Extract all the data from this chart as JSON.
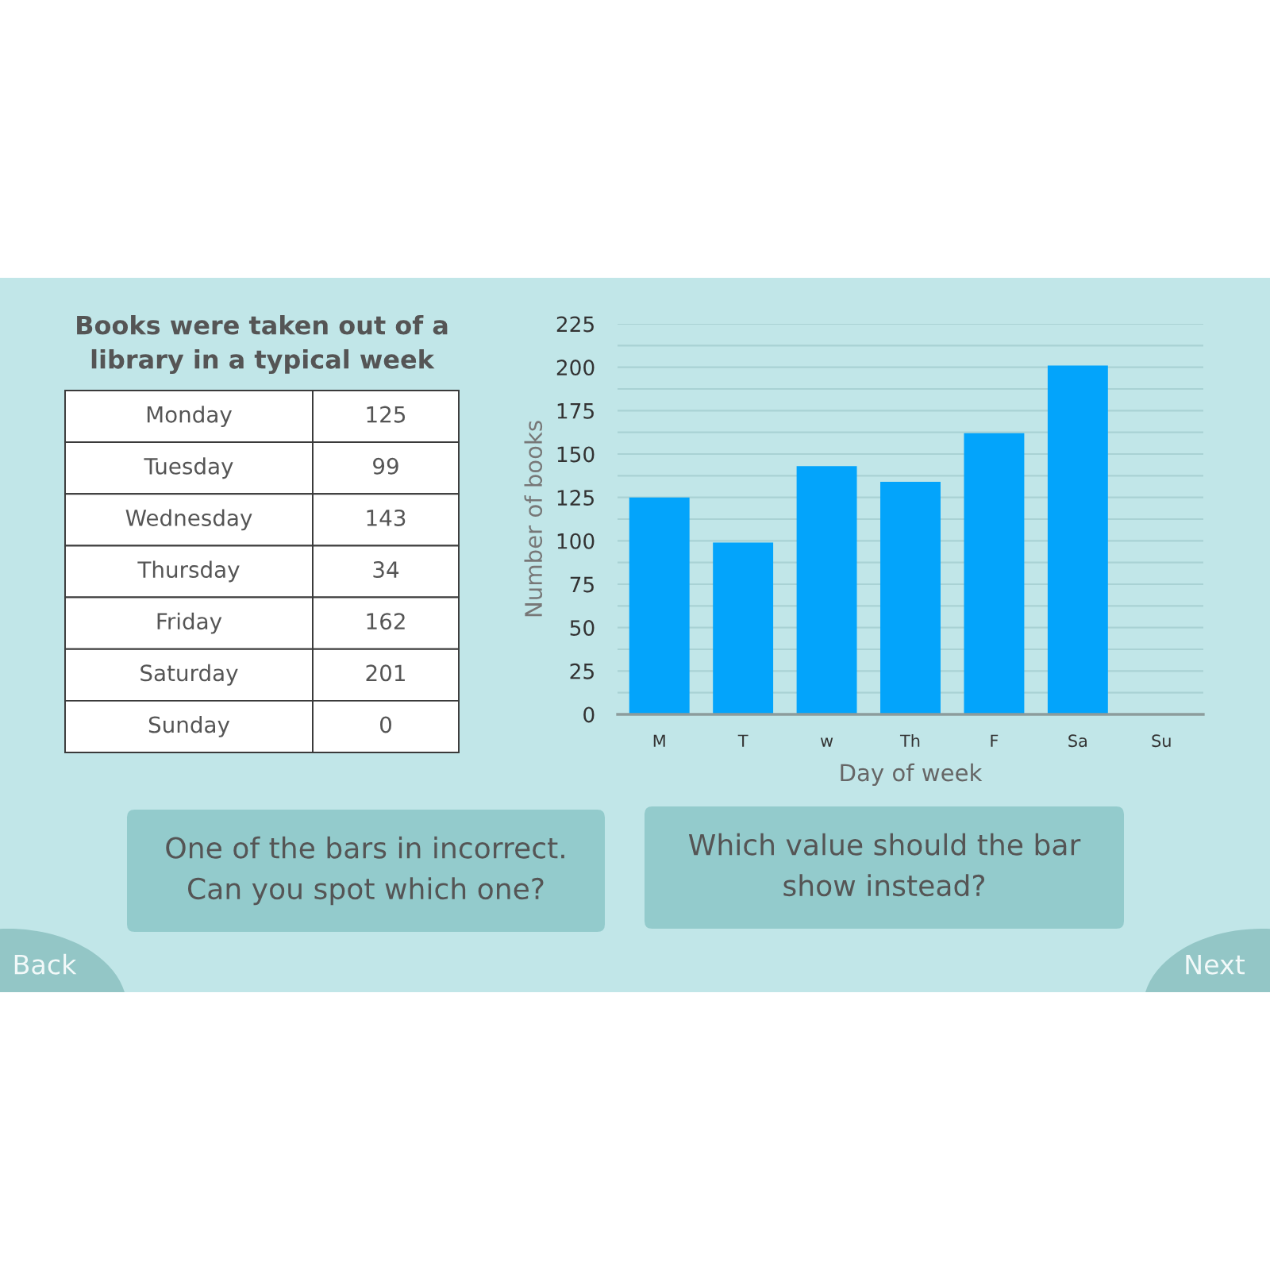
{
  "chart_data": [
    {
      "type": "other",
      "title": "Books were taken out of a library in a typical week",
      "categories": [
        "Monday",
        "Tuesday",
        "Wednesday",
        "Thursday",
        "Friday",
        "Saturday",
        "Sunday"
      ],
      "values": [
        125,
        99,
        143,
        34,
        162,
        201,
        0
      ],
      "data_labels": true
    },
    {
      "type": "bar",
      "categories": [
        "M",
        "T",
        "w",
        "Th",
        "F",
        "Sa",
        "Su"
      ],
      "values": [
        125,
        99,
        143,
        134,
        162,
        201,
        0
      ],
      "color": "#03a4fb",
      "xlabel": "Day of week",
      "ylabel": "Number of books",
      "ylim": [
        0,
        225
      ],
      "yticks": [
        0,
        {
          "value": 12.5,
          "label": null
        },
        25,
        {
          "value": 37.5,
          "label": null
        },
        50,
        {
          "value": 62.5,
          "label": null
        },
        75,
        {
          "value": 87.5,
          "label": null
        },
        100,
        {
          "value": 112.5,
          "label": null
        },
        125,
        {
          "value": 137.5,
          "label": null
        },
        150,
        {
          "value": 162.5,
          "label": null
        },
        175,
        {
          "value": 187.5,
          "label": null
        },
        200,
        {
          "value": 212.5,
          "label": null
        },
        225
      ],
      "grid": "y",
      "annotations": [
        "One of the bars in incorrect. Can you spot which one?",
        "Which value should the bar show instead?",
        "Back",
        "Next"
      ]
    }
  ]
}
